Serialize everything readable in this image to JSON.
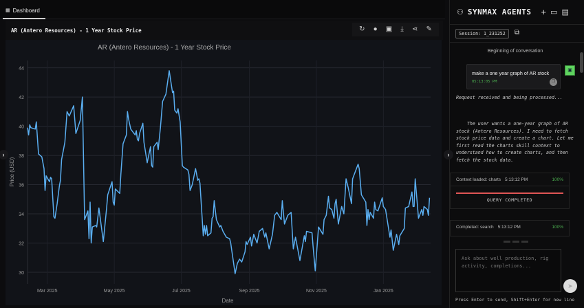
{
  "tabs": [
    {
      "label": "Dashboard",
      "icon": "dashboard-icon",
      "active": true
    }
  ],
  "chart_card": {
    "title": "AR (Antero Resources) - 1 Year Stock Price",
    "toolbar": [
      {
        "name": "refresh-icon",
        "glyph": "↻"
      },
      {
        "name": "timer-icon",
        "glyph": "●"
      },
      {
        "name": "export-image-icon",
        "glyph": "▣"
      },
      {
        "name": "download-icon",
        "glyph": "⤓"
      },
      {
        "name": "share-icon",
        "glyph": "⋖"
      },
      {
        "name": "edit-icon",
        "glyph": "✎"
      }
    ]
  },
  "chart_data": {
    "type": "line",
    "title": "AR (Antero Resources) - 1 Year Stock Price",
    "xlabel": "Date",
    "ylabel": "Price (USD)",
    "xlim": [
      "2025-02-11",
      "2026-02-13"
    ],
    "ylim": [
      29.2,
      44.5
    ],
    "grid": true,
    "line_color": "#5aaef0",
    "xticks": [
      {
        "date": "2025-03-01",
        "label": "Mar 2025"
      },
      {
        "date": "2025-05-01",
        "label": "May 2025"
      },
      {
        "date": "2025-07-01",
        "label": "Jul 2025"
      },
      {
        "date": "2025-09-01",
        "label": "Sep 2025"
      },
      {
        "date": "2025-11-01",
        "label": "Nov 2025"
      },
      {
        "date": "2026-01-01",
        "label": "Jan 2026"
      }
    ],
    "yticks": [
      30,
      32,
      34,
      36,
      38,
      40,
      42,
      44
    ],
    "x": [
      "2025-02-11",
      "2025-02-12",
      "2025-02-13",
      "2025-02-14",
      "2025-02-18",
      "2025-02-19",
      "2025-02-21",
      "2025-02-24",
      "2025-02-26",
      "2025-02-27",
      "2025-02-28",
      "2025-03-03",
      "2025-03-04",
      "2025-03-05",
      "2025-03-07",
      "2025-03-08",
      "2025-03-10",
      "2025-03-12",
      "2025-03-13",
      "2025-03-14",
      "2025-03-17",
      "2025-03-19",
      "2025-03-21",
      "2025-03-25",
      "2025-03-27",
      "2025-03-31",
      "2025-04-02",
      "2025-04-04",
      "2025-04-07",
      "2025-04-08",
      "2025-04-09",
      "2025-04-10",
      "2025-04-11",
      "2025-04-14",
      "2025-04-15",
      "2025-04-17",
      "2025-04-21",
      "2025-04-24",
      "2025-04-25",
      "2025-04-29",
      "2025-04-30",
      "2025-05-01",
      "2025-05-02",
      "2025-05-06",
      "2025-05-07",
      "2025-05-09",
      "2025-05-12",
      "2025-05-13",
      "2025-05-14",
      "2025-05-16",
      "2025-05-20",
      "2025-05-21",
      "2025-05-22",
      "2025-05-23",
      "2025-05-24",
      "2025-05-27",
      "2025-05-28",
      "2025-05-31",
      "2025-06-03",
      "2025-06-04",
      "2025-06-05",
      "2025-06-06",
      "2025-06-09",
      "2025-06-10",
      "2025-06-12",
      "2025-06-14",
      "2025-06-17",
      "2025-06-20",
      "2025-06-23",
      "2025-06-24",
      "2025-06-25",
      "2025-06-27",
      "2025-06-28",
      "2025-06-30",
      "2025-07-02",
      "2025-07-03",
      "2025-07-07",
      "2025-07-08",
      "2025-07-09",
      "2025-07-11",
      "2025-07-14",
      "2025-07-16",
      "2025-07-17",
      "2025-07-18",
      "2025-07-21",
      "2025-07-22",
      "2025-07-23",
      "2025-07-24",
      "2025-07-25",
      "2025-07-28",
      "2025-07-29",
      "2025-07-30",
      "2025-07-31",
      "2025-08-02",
      "2025-08-05",
      "2025-08-06",
      "2025-08-08",
      "2025-08-11",
      "2025-08-14",
      "2025-08-15",
      "2025-08-19",
      "2025-08-21",
      "2025-08-23",
      "2025-08-25",
      "2025-08-28",
      "2025-08-29",
      "2025-08-30",
      "2025-09-02",
      "2025-09-03",
      "2025-09-05",
      "2025-09-08",
      "2025-09-10",
      "2025-09-13",
      "2025-09-15",
      "2025-09-16",
      "2025-09-19",
      "2025-09-22",
      "2025-09-24",
      "2025-09-26",
      "2025-09-30",
      "2025-10-01",
      "2025-10-03",
      "2025-10-06",
      "2025-10-09",
      "2025-10-11",
      "2025-10-13",
      "2025-10-15",
      "2025-10-17",
      "2025-10-21",
      "2025-10-22",
      "2025-10-23",
      "2025-10-28",
      "2025-10-29",
      "2025-10-31",
      "2025-11-03",
      "2025-11-07",
      "2025-11-08",
      "2025-11-10",
      "2025-11-12",
      "2025-11-13",
      "2025-11-15",
      "2025-11-17",
      "2025-11-18",
      "2025-11-19",
      "2025-11-21",
      "2025-11-24",
      "2025-11-26",
      "2025-11-28",
      "2025-11-30",
      "2025-12-03",
      "2025-12-04",
      "2025-12-09",
      "2025-12-10",
      "2025-12-12",
      "2025-12-16",
      "2025-12-17",
      "2025-12-18",
      "2025-12-19",
      "2025-12-20",
      "2025-12-23",
      "2025-12-24",
      "2025-12-25",
      "2025-12-27",
      "2025-12-31",
      "2026-01-01",
      "2026-01-03",
      "2026-01-07",
      "2026-01-08",
      "2026-01-10",
      "2026-01-13",
      "2026-01-15",
      "2026-01-16",
      "2026-01-20",
      "2026-01-21",
      "2026-01-24",
      "2026-01-27",
      "2026-01-28",
      "2026-01-29",
      "2026-01-30",
      "2026-02-02",
      "2026-02-05",
      "2026-02-06",
      "2026-02-07",
      "2026-02-10",
      "2026-02-11",
      "2026-02-12"
    ],
    "y": [
      39.9,
      39.4,
      40.1,
      39.9,
      39.8,
      40.3,
      38.1,
      37.9,
      37.1,
      35.6,
      36.6,
      36.2,
      36.5,
      36.4,
      33.8,
      33.7,
      34.7,
      35.9,
      36.3,
      37.7,
      38.9,
      41.0,
      40.7,
      41.4,
      39.5,
      40.4,
      42.0,
      33.6,
      34.2,
      32.3,
      34.8,
      32.0,
      33.1,
      33.2,
      33.1,
      34.4,
      32.1,
      34.4,
      35.3,
      36.2,
      34.8,
      34.6,
      35.7,
      35.4,
      36.7,
      38.8,
      39.4,
      41.0,
      40.5,
      39.8,
      39.4,
      39.7,
      39.1,
      39.0,
      39.5,
      40.2,
      38.9,
      37.5,
      38.6,
      37.3,
      37.2,
      38.6,
      38.9,
      38.4,
      39.9,
      41.7,
      42.2,
      43.8,
      42.3,
      42.4,
      41.1,
      40.9,
      41.2,
      40.3,
      37.3,
      37.2,
      37.0,
      36.7,
      35.6,
      36.0,
      37.1,
      36.3,
      36.4,
      36.1,
      32.5,
      33.2,
      32.6,
      33.2,
      32.5,
      32.7,
      33.7,
      33.8,
      34.9,
      33.6,
      33.1,
      33.2,
      32.8,
      32.4,
      32.3,
      32.0,
      29.9,
      30.6,
      30.9,
      30.7,
      31.4,
      32.1,
      31.9,
      32.4,
      31.8,
      32.6,
      32.0,
      32.8,
      33.0,
      32.4,
      32.7,
      31.6,
      32.6,
      33.9,
      34.1,
      33.6,
      34.9,
      33.3,
      33.9,
      34.1,
      31.6,
      32.4,
      31.6,
      30.8,
      32.5,
      32.1,
      32.8,
      32.7,
      31.8,
      30.1,
      33.1,
      32.6,
      33.6,
      33.9,
      35.2,
      34.4,
      34.3,
      33.7,
      34.7,
      35.0,
      33.3,
      34.5,
      34.0,
      36.4,
      35.8,
      34.7,
      36.4,
      37.4,
      37.1,
      35.3,
      34.8,
      33.2,
      34.3,
      33.6,
      34.1,
      33.7,
      34.8,
      34.3,
      34.2,
      35.1,
      34.5,
      34.3,
      32.4,
      32.9,
      31.5,
      32.6,
      31.9,
      32.5,
      33.0,
      34.4,
      34.5,
      35.5,
      34.5,
      34.5,
      36.4,
      33.7,
      34.3,
      33.9,
      34.5,
      34.3,
      33.9,
      35.1
    ]
  },
  "agent_panel": {
    "brand": "SYNMAX AGENTS",
    "header_icons": [
      "agents-icon",
      "plus-icon",
      "folder-icon",
      "calendar-icon"
    ],
    "session": "Session: 1_231252",
    "beginning": "Beginning of conversation",
    "user_message": {
      "text": "make a one year graph of AR stock",
      "time": "05:13:05 PM"
    },
    "ack": "Request received and being processed...",
    "thinking": "    The user wants a one-year graph of AR stock (Antero Resources). I need to fetch stock price data and create a chart. Let me first read the charts skill context to understand how to create charts, and then fetch the stock data.",
    "status_cards": [
      {
        "label": "Context loaded: charts",
        "time": "5:13:12 PM",
        "progress": "100%",
        "footer": "QUERY COMPLETED"
      },
      {
        "label": "Completed: search",
        "time": "5:13:12 PM",
        "progress": "100%"
      }
    ],
    "input_placeholder": "Ask about well production, rig activity, completions...",
    "hint": "Press Enter to send, Shift+Enter for new line",
    "accent_green": "#5fd35f",
    "error_red": "#e05555"
  }
}
